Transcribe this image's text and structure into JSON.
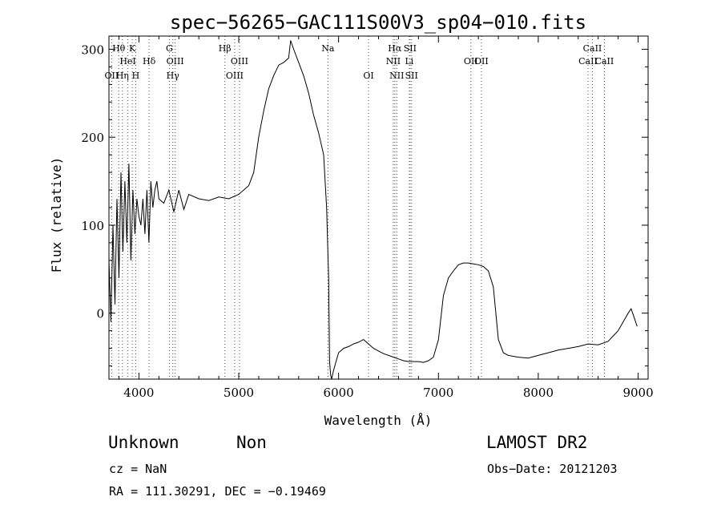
{
  "chart_data": {
    "type": "line",
    "title": "spec−56265−GAC111S00V3_sp04−010.fits",
    "xlabel": "Wavelength (Å)",
    "ylabel": "Flux (relative)",
    "xlim": [
      3700,
      9100
    ],
    "ylim": [
      -75,
      315
    ],
    "xticks": [
      4000,
      5000,
      6000,
      7000,
      8000,
      9000
    ],
    "yticks": [
      0,
      100,
      200,
      300
    ],
    "grid": false,
    "series": [
      {
        "x": [
          3700,
          3720,
          3740,
          3760,
          3780,
          3800,
          3820,
          3840,
          3860,
          3880,
          3900,
          3920,
          3940,
          3960,
          3980,
          4000,
          4020,
          4040,
          4060,
          4080,
          4100,
          4120,
          4140,
          4160,
          4180,
          4200,
          4250,
          4300,
          4350,
          4400,
          4450,
          4500,
          4600,
          4700,
          4800,
          4900,
          5000,
          5100,
          5150,
          5200,
          5250,
          5300,
          5350,
          5400,
          5450,
          5500,
          5520,
          5550,
          5600,
          5650,
          5700,
          5750,
          5800,
          5850,
          5880,
          5900,
          5910,
          5920,
          5930,
          5950,
          6000,
          6050,
          6100,
          6150,
          6200,
          6250,
          6300,
          6350,
          6400,
          6450,
          6500,
          6550,
          6600,
          6650,
          6700,
          6750,
          6800,
          6850,
          6900,
          6950,
          7000,
          7050,
          7100,
          7150,
          7200,
          7250,
          7300,
          7350,
          7400,
          7450,
          7500,
          7550,
          7600,
          7650,
          7700,
          7800,
          7900,
          8000,
          8100,
          8200,
          8300,
          8400,
          8500,
          8600,
          8700,
          8800,
          8850,
          8900,
          8930,
          8960,
          8990
        ],
        "y": [
          60,
          -10,
          100,
          10,
          130,
          40,
          160,
          70,
          150,
          80,
          170,
          60,
          140,
          90,
          130,
          110,
          100,
          130,
          90,
          140,
          80,
          150,
          120,
          140,
          150,
          130,
          125,
          140,
          115,
          140,
          118,
          135,
          130,
          128,
          132,
          130,
          135,
          145,
          160,
          200,
          230,
          255,
          270,
          282,
          285,
          290,
          310,
          300,
          285,
          270,
          250,
          225,
          205,
          180,
          120,
          40,
          -55,
          -70,
          -75,
          -65,
          -45,
          -40,
          -38,
          -35,
          -33,
          -30,
          -35,
          -40,
          -43,
          -46,
          -48,
          -50,
          -52,
          -54,
          -55,
          -55,
          -55,
          -56,
          -54,
          -50,
          -30,
          20,
          40,
          48,
          55,
          57,
          57,
          56,
          55,
          53,
          48,
          30,
          -30,
          -45,
          -48,
          -50,
          -51,
          -48,
          -45,
          -42,
          -40,
          -38,
          -35,
          -36,
          -32,
          -20,
          -10,
          0,
          5,
          -5,
          -15
        ]
      }
    ],
    "lines": [
      {
        "name": "OII",
        "x": 3727,
        "row": 3
      },
      {
        "name": "Hθ",
        "x": 3798,
        "row": 1
      },
      {
        "name": "Hη",
        "x": 3835,
        "row": 3
      },
      {
        "name": "HeI",
        "x": 3889,
        "row": 2
      },
      {
        "name": "K",
        "x": 3934,
        "row": 1
      },
      {
        "name": "H",
        "x": 3968,
        "row": 3
      },
      {
        "name": "Hδ",
        "x": 4102,
        "row": 2
      },
      {
        "name": "G",
        "x": 4305,
        "row": 1
      },
      {
        "name": "Hγ",
        "x": 4340,
        "row": 3
      },
      {
        "name": "OIII",
        "x": 4363,
        "row": 2
      },
      {
        "name": "Hβ",
        "x": 4861,
        "row": 1
      },
      {
        "name": "OIII",
        "x": 4959,
        "row": 3
      },
      {
        "name": "OIII",
        "x": 5007,
        "row": 2
      },
      {
        "name": "Na",
        "x": 5893,
        "row": 1
      },
      {
        "name": "OI",
        "x": 6300,
        "row": 3
      },
      {
        "name": "NII",
        "x": 6548,
        "row": 2
      },
      {
        "name": "Hα",
        "x": 6563,
        "row": 1
      },
      {
        "name": "NII",
        "x": 6583,
        "row": 3
      },
      {
        "name": "Li",
        "x": 6708,
        "row": 2
      },
      {
        "name": "SII",
        "x": 6716,
        "row": 1
      },
      {
        "name": "SII",
        "x": 6731,
        "row": 3
      },
      {
        "name": "OII",
        "x": 7325,
        "row": 2
      },
      {
        "name": "OII",
        "x": 7430,
        "row": 2
      },
      {
        "name": "CaII",
        "x": 8498,
        "row": 2
      },
      {
        "name": "CaII",
        "x": 8542,
        "row": 1
      },
      {
        "name": "CaII",
        "x": 8662,
        "row": 2
      }
    ],
    "line_color": "#ff0000"
  },
  "info": {
    "class": "Unknown",
    "subclass": "Non",
    "cz": "cz = NaN",
    "radec": "RA = 111.30291, DEC =  −0.19469",
    "source": "LAMOST DR2",
    "obs_date": "Obs−Date: 20121203"
  }
}
